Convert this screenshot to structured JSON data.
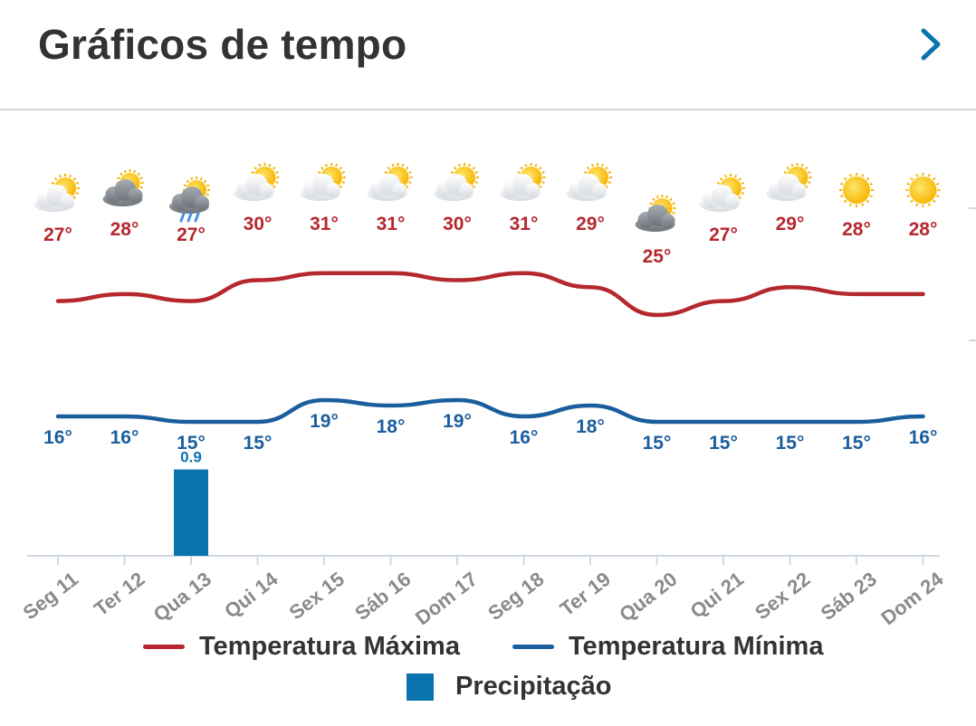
{
  "header": {
    "title": "Gráficos de tempo",
    "next_icon": "chevron-right-icon"
  },
  "colors": {
    "max": "#b5282e",
    "min": "#1b5e9e",
    "precip": "#0a72ad",
    "axis": "#cfd8e0",
    "text": "#333333"
  },
  "days": [
    {
      "label": "Seg 11",
      "icon": "partly-cloudy-icon"
    },
    {
      "label": "Ter 12",
      "icon": "cloudy-icon"
    },
    {
      "label": "Qua 13",
      "icon": "rain-icon"
    },
    {
      "label": "Qui 14",
      "icon": "partly-cloudy-icon"
    },
    {
      "label": "Sex 15",
      "icon": "partly-cloudy-icon"
    },
    {
      "label": "Sáb 16",
      "icon": "partly-cloudy-icon"
    },
    {
      "label": "Dom 17",
      "icon": "partly-cloudy-icon"
    },
    {
      "label": "Seg 18",
      "icon": "partly-cloudy-icon"
    },
    {
      "label": "Ter 19",
      "icon": "partly-cloudy-icon"
    },
    {
      "label": "Qua 20",
      "icon": "cloudy-icon"
    },
    {
      "label": "Qui 21",
      "icon": "partly-cloudy-icon"
    },
    {
      "label": "Sex 22",
      "icon": "partly-cloudy-icon"
    },
    {
      "label": "Sáb 23",
      "icon": "sun-icon"
    },
    {
      "label": "Dom 24",
      "icon": "sun-icon"
    }
  ],
  "chart_data": {
    "type": "line",
    "categories": [
      "Seg 11",
      "Ter 12",
      "Qua 13",
      "Qui 14",
      "Sex 15",
      "Sáb 16",
      "Dom 17",
      "Seg 18",
      "Ter 19",
      "Qua 20",
      "Qui 21",
      "Sex 22",
      "Sáb 23",
      "Dom 24"
    ],
    "series": [
      {
        "name": "Temperatura Máxima",
        "values": [
          27,
          28,
          27,
          30,
          31,
          31,
          30,
          31,
          29,
          25,
          27,
          29,
          28,
          28
        ],
        "labels": [
          "27°",
          "28°",
          "27°",
          "30°",
          "31°",
          "31°",
          "30°",
          "31°",
          "29°",
          "25°",
          "27°",
          "29°",
          "28°",
          "28°"
        ]
      },
      {
        "name": "Temperatura Mínima",
        "values": [
          16,
          16,
          15,
          15,
          19,
          18,
          19,
          16,
          18,
          15,
          15,
          15,
          15,
          16
        ],
        "labels": [
          "16°",
          "16°",
          "15°",
          "15°",
          "19°",
          "18°",
          "19°",
          "16°",
          "18°",
          "15°",
          "15°",
          "15°",
          "15°",
          "16°"
        ]
      },
      {
        "name": "Precipitação",
        "type": "bar",
        "values": [
          0,
          0,
          0.9,
          0,
          0,
          0,
          0,
          0,
          0,
          0,
          0,
          0,
          0,
          0
        ],
        "labels": [
          "",
          "",
          "0.9",
          "",
          "",
          "",
          "",
          "",
          "",
          "",
          "",
          "",
          "",
          ""
        ]
      }
    ]
  },
  "legend": {
    "max": "Temperatura Máxima",
    "min": "Temperatura Mínima",
    "precip": "Precipitação"
  }
}
